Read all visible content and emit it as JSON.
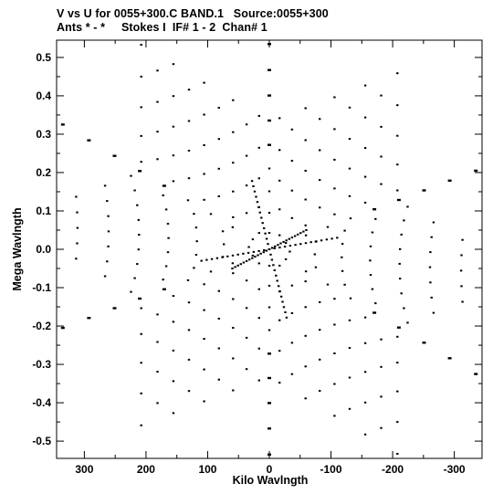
{
  "header": {
    "title_line1": "V vs U for 0055+300.C BAND.1   Source:0055+300",
    "title_line2": "Ants * - *     Stokes I  IF# 1 - 2  Chan# 1"
  },
  "chart_data": {
    "type": "scatter",
    "title": "V vs U for 0055+300.C BAND.1   Source:0055+300",
    "subtitle": "Ants * - *     Stokes I  IF# 1 - 2  Chan# 1",
    "xlabel": "Kilo Wavlngth",
    "ylabel": "Mega Wavlngth",
    "x_unit_scale": 1000,
    "xlim": [
      345,
      -345
    ],
    "ylim": [
      -0.545,
      0.545
    ],
    "x_reversed": true,
    "x_ticks": [
      300,
      200,
      100,
      0,
      -100,
      -200,
      -300
    ],
    "y_ticks": [
      0.5,
      0.4,
      0.3,
      0.2,
      0.1,
      0.0,
      -0.1,
      -0.2,
      -0.3,
      -0.4,
      -0.5
    ],
    "x_tick_labels": [
      "300",
      "200",
      "100",
      "0",
      "-100",
      "-200",
      "-300"
    ],
    "y_tick_labels": [
      "0.5",
      "0.4",
      "0.3",
      "0.2",
      "0.1",
      "0.0",
      "-0.1",
      "-0.2",
      "-0.3",
      "-0.4",
      "-0.5"
    ],
    "grid": false,
    "marker_color": "#000000",
    "pattern": "six-armed symmetric uv-coverage star (three antenna arms and their conjugates)",
    "arm_tips": [
      {
        "u_klambda": 0,
        "v_mlambda": 0.535
      },
      {
        "u_klambda": -335,
        "v_mlambda": 0.205
      },
      {
        "u_klambda": -335,
        "v_mlambda": -0.325
      },
      {
        "u_klambda": 0,
        "v_mlambda": -0.535
      },
      {
        "u_klambda": 335,
        "v_mlambda": -0.205
      },
      {
        "u_klambda": 335,
        "v_mlambda": 0.325
      }
    ],
    "stations_per_arm": 9,
    "dense_spokes": [
      {
        "from": [
          28,
          0.178
        ],
        "to": [
          -28,
          -0.178
        ]
      },
      {
        "from": [
          -60,
          0.05
        ],
        "to": [
          60,
          -0.05
        ]
      },
      {
        "from": [
          -110,
          0.03
        ],
        "to": [
          110,
          -0.03
        ]
      }
    ]
  }
}
